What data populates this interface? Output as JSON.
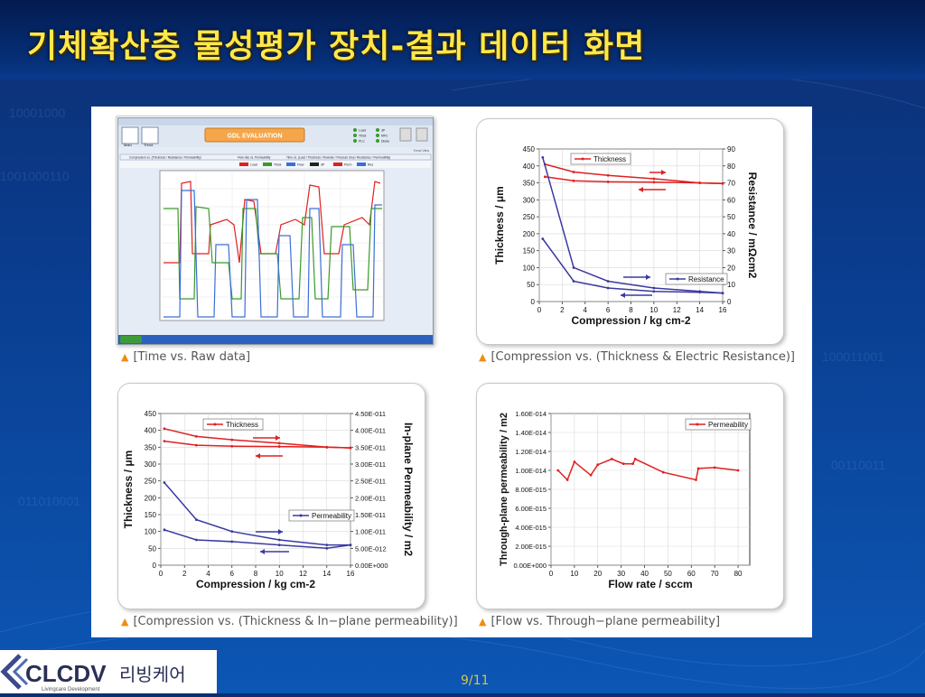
{
  "slide": {
    "title": "기체확산층 물성평가 장치-결과 데이터 화면",
    "page": "9/11",
    "logo_text": "CLCDV",
    "logo_sub": "Livingcare Development",
    "logo_korean": "리빙케어"
  },
  "captions": {
    "c1": "[Time vs. Raw data]",
    "c2": "[Compression vs. (Thickness & Electric Resistance)]",
    "c3": "[Compression vs. (Thickness & In−plane permeability)]",
    "c4": "[Flow vs. Through−plane permeability]"
  },
  "screenshot": {
    "app_title": "GDL EVALUATION",
    "tabs": [
      "Compression vs. (Thickness / Resistance / Permeability)",
      "Flow rate vs. Permeability",
      "Time vs. (Load / Thickness / Flowrate / Pressure drop / Resistance / Permeability)"
    ],
    "toolbar_buttons": [
      "Main",
      "Trend"
    ],
    "status": [
      "Load",
      "Thick",
      "PLC",
      "dP",
      "MFC",
      "Diode"
    ],
    "legend": [
      "Load",
      "Thick",
      "Flow",
      "dP",
      "Perm",
      "Res"
    ],
    "colors": {
      "red": "#e02020",
      "green": "#3a9a2a",
      "blue": "#3a6fd8",
      "black": "#222222"
    },
    "tail_label": "Trend View"
  },
  "chart_data": [
    {
      "type": "line",
      "id": "thickness_resistance",
      "xlabel": "Compression / kg cm-2",
      "xlim": [
        0,
        16
      ],
      "xticks": [
        0,
        2,
        4,
        6,
        8,
        10,
        12,
        14,
        16
      ],
      "ylabel": "Thickness / μm",
      "ylim": [
        0,
        450
      ],
      "yticks": [
        0,
        50,
        100,
        150,
        200,
        250,
        300,
        350,
        400,
        450
      ],
      "y2label": "Resistance / mΩcm2",
      "y2lim": [
        0,
        90
      ],
      "y2ticks": [
        0,
        10,
        20,
        30,
        40,
        50,
        60,
        70,
        80,
        90
      ],
      "series": [
        {
          "name": "Thickness",
          "axis": "y",
          "color": "#e02020",
          "x": [
            0.5,
            3,
            6,
            10,
            14,
            16
          ],
          "values": [
            405,
            382,
            372,
            362,
            350,
            348
          ]
        },
        {
          "name": "",
          "axis": "y",
          "color": "#e02020",
          "x": [
            0.5,
            3,
            6,
            10,
            14,
            16
          ],
          "values": [
            368,
            356,
            353,
            352,
            350,
            348
          ]
        },
        {
          "name": "Resistance",
          "axis": "y2",
          "color": "#3a3aa0",
          "x": [
            0.3,
            3,
            6,
            10,
            14,
            16
          ],
          "values": [
            85,
            20,
            12,
            8,
            6,
            5
          ]
        },
        {
          "name": "",
          "axis": "y2",
          "color": "#3a3aa0",
          "x": [
            0.3,
            3,
            6,
            10,
            14,
            16
          ],
          "values": [
            37,
            12,
            8,
            6,
            5.5,
            5
          ]
        }
      ]
    },
    {
      "type": "line",
      "id": "thickness_permeability",
      "xlabel": "Compression / kg cm-2",
      "xlim": [
        0,
        16
      ],
      "xticks": [
        0,
        2,
        4,
        6,
        8,
        10,
        12,
        14,
        16
      ],
      "ylabel": "Thickness / μm",
      "ylim": [
        0,
        450
      ],
      "yticks": [
        0,
        50,
        100,
        150,
        200,
        250,
        300,
        350,
        400,
        450
      ],
      "y2label": "In-plane Permeability / m2",
      "y2lim": [
        0,
        4.5e-11
      ],
      "y2ticks_text": [
        "0.00E+000",
        "5.00E-012",
        "1.00E-011",
        "1.50E-011",
        "2.00E-011",
        "2.50E-011",
        "3.00E-011",
        "3.50E-011",
        "4.00E-011",
        "4.50E-011"
      ],
      "series": [
        {
          "name": "Thickness",
          "axis": "y",
          "color": "#e02020",
          "x": [
            0.3,
            3,
            6,
            10,
            14,
            16
          ],
          "values": [
            405,
            382,
            372,
            362,
            350,
            348
          ]
        },
        {
          "name": "",
          "axis": "y",
          "color": "#e02020",
          "x": [
            0.3,
            3,
            6,
            10,
            14,
            16
          ],
          "values": [
            368,
            356,
            353,
            352,
            350,
            348
          ]
        },
        {
          "name": "Permeability",
          "axis": "y2",
          "color": "#3a3aa0",
          "x": [
            0.3,
            3,
            6,
            10,
            14,
            16
          ],
          "values": [
            2.45e-11,
            1.35e-11,
            1e-11,
            7.5e-12,
            6e-12,
            6e-12
          ]
        },
        {
          "name": "",
          "axis": "y2",
          "color": "#3a3aa0",
          "x": [
            0.3,
            3,
            6,
            10,
            14,
            16
          ],
          "values": [
            1.05e-11,
            7.5e-12,
            7e-12,
            6e-12,
            5e-12,
            6e-12
          ]
        }
      ]
    },
    {
      "type": "line",
      "id": "flow_permeability",
      "xlabel": "Flow rate / sccm",
      "xlim": [
        0,
        85
      ],
      "xticks": [
        0,
        10,
        20,
        30,
        40,
        50,
        60,
        70,
        80
      ],
      "ylabel": "Through-plane permeability / m2",
      "ylim": [
        0,
        1.6e-14
      ],
      "yticks_text": [
        "0.00E+000",
        "2.00E-015",
        "4.00E-015",
        "6.00E-015",
        "8.00E-015",
        "1.00E-014",
        "1.20E-014",
        "1.40E-014",
        "1.60E-014"
      ],
      "series": [
        {
          "name": "Permeability",
          "axis": "y",
          "color": "#e02020",
          "x": [
            3,
            7,
            10,
            17,
            20,
            26,
            31,
            35,
            36,
            48,
            62,
            63,
            70,
            80
          ],
          "values": [
            1e-14,
            9e-15,
            1.09e-14,
            9.5e-15,
            1.06e-14,
            1.12e-14,
            1.07e-14,
            1.07e-14,
            1.12e-14,
            9.8e-15,
            9e-15,
            1.02e-14,
            1.03e-14,
            1e-14
          ]
        }
      ]
    }
  ]
}
